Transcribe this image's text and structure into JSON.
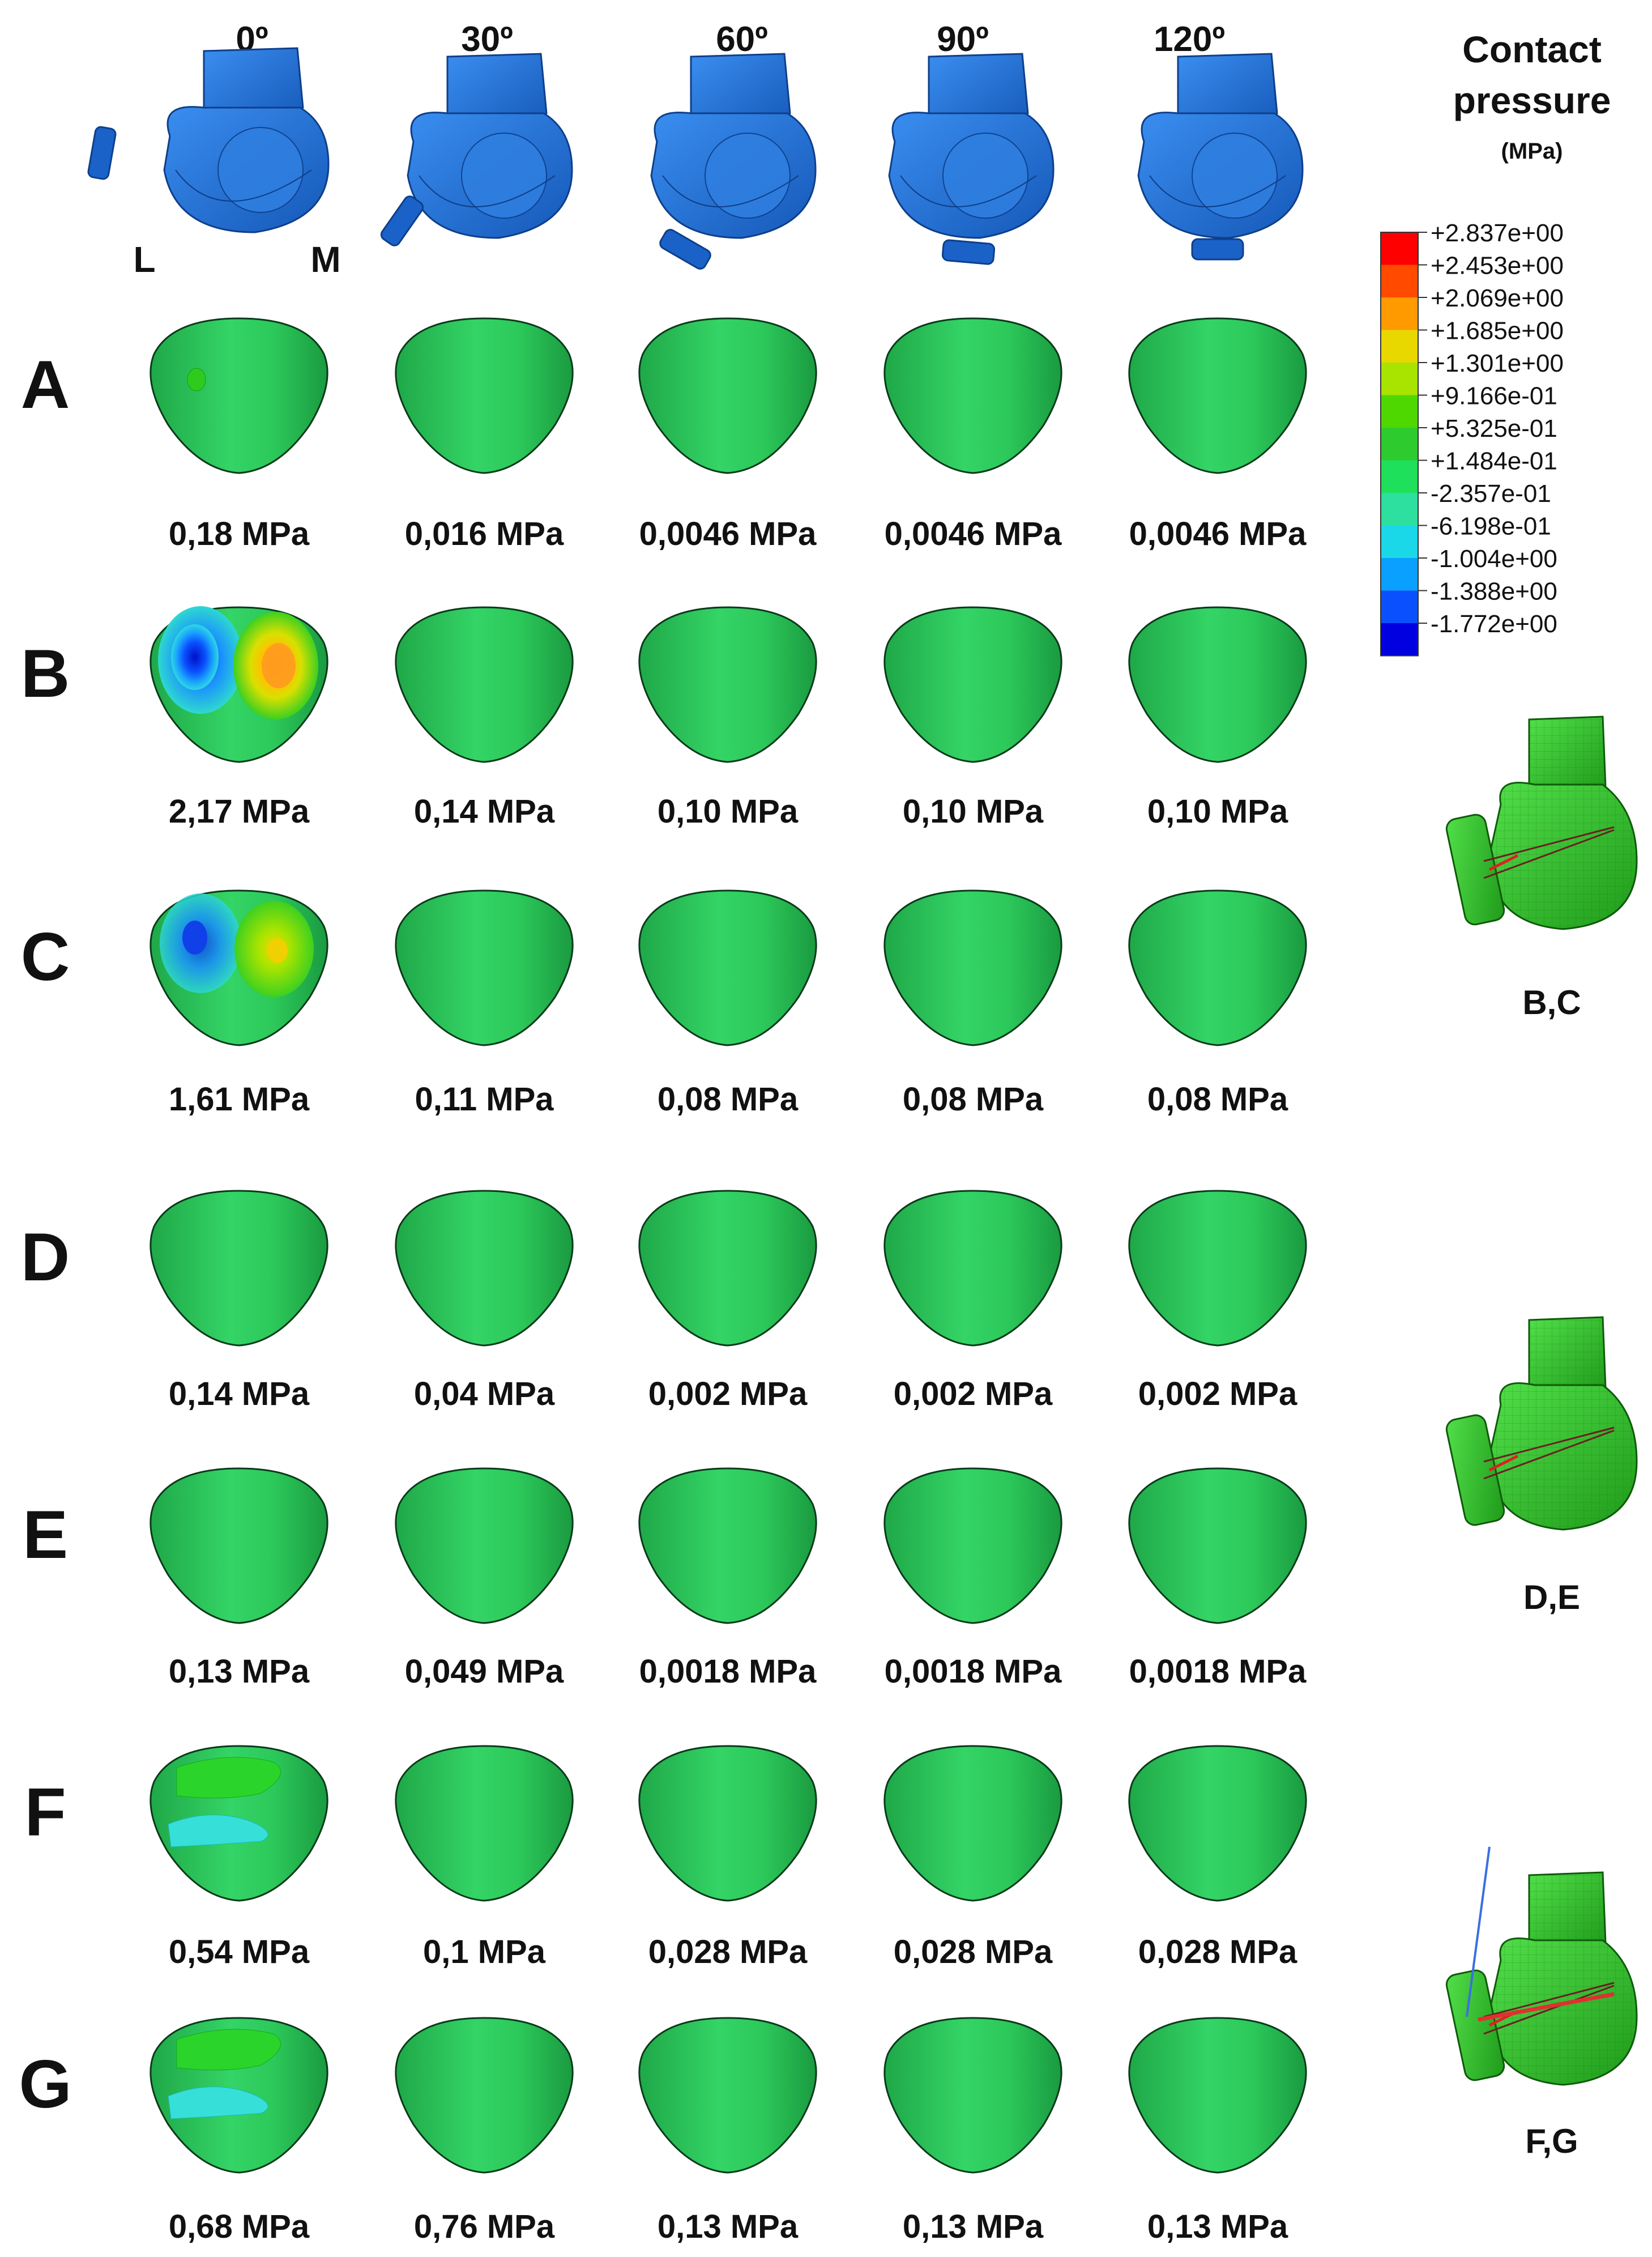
{
  "angles": [
    "0º",
    "30º",
    "60º",
    "90º",
    "120º"
  ],
  "orientation": {
    "lateral": "L",
    "medial": "M"
  },
  "legend": {
    "title_line1": "Contact",
    "title_line2": "pressure",
    "unit": "(MPa)",
    "values": [
      "+2.837e+00",
      "+2.453e+00",
      "+2.069e+00",
      "+1.685e+00",
      "+1.301e+00",
      "+9.166e-01",
      "+5.325e-01",
      "+1.484e-01",
      "-2.357e-01",
      "-6.198e-01",
      "-1.004e+00",
      "-1.388e+00",
      "-1.772e+00"
    ],
    "colors": [
      "#ff0000",
      "#ff4a00",
      "#ff9a00",
      "#e8d800",
      "#a8e400",
      "#4ed800",
      "#2ecb2e",
      "#1ee05a",
      "#2ee0a0",
      "#1ad8e8",
      "#0aa0ff",
      "#0a50ff",
      "#0000e0"
    ]
  },
  "colors": {
    "patella_base": "#27c45a",
    "femur_blue": "#1a6fd4",
    "femur_mesh_green": "#2fc42a"
  },
  "rows": [
    {
      "label": "A",
      "pressures": [
        "0,18 MPa",
        "0,016 MPa",
        "0,0046 MPa",
        "0,0046 MPa",
        "0,0046 MPa"
      ],
      "first_pattern": "spot"
    },
    {
      "label": "B",
      "pressures": [
        "2,17 MPa",
        "0,14 MPa",
        "0,10 MPa",
        "0,10 MPa",
        "0,10 MPa"
      ],
      "first_pattern": "strong"
    },
    {
      "label": "C",
      "pressures": [
        "1,61 MPa",
        "0,11 MPa",
        "0,08 MPa",
        "0,08 MPa",
        "0,08 MPa"
      ],
      "first_pattern": "medium"
    },
    {
      "label": "D",
      "pressures": [
        "0,14 MPa",
        "0,04 MPa",
        "0,002 MPa",
        "0,002 MPa",
        "0,002 MPa"
      ],
      "first_pattern": "none"
    },
    {
      "label": "E",
      "pressures": [
        "0,13 MPa",
        "0,049 MPa",
        "0,0018 MPa",
        "0,0018 MPa",
        "0,0018 MPa"
      ],
      "first_pattern": "none"
    },
    {
      "label": "F",
      "pressures": [
        "0,54 MPa",
        "0,1 MPa",
        "0,028 MPa",
        "0,028 MPa",
        "0,028 MPa"
      ],
      "first_pattern": "bands"
    },
    {
      "label": "G",
      "pressures": [
        "0,68 MPa",
        "0,76 MPa",
        "0,13 MPa",
        "0,13 MPa",
        "0,13 MPa"
      ],
      "first_pattern": "bands"
    }
  ],
  "models": [
    "B,C",
    "D,E",
    "F,G"
  ]
}
